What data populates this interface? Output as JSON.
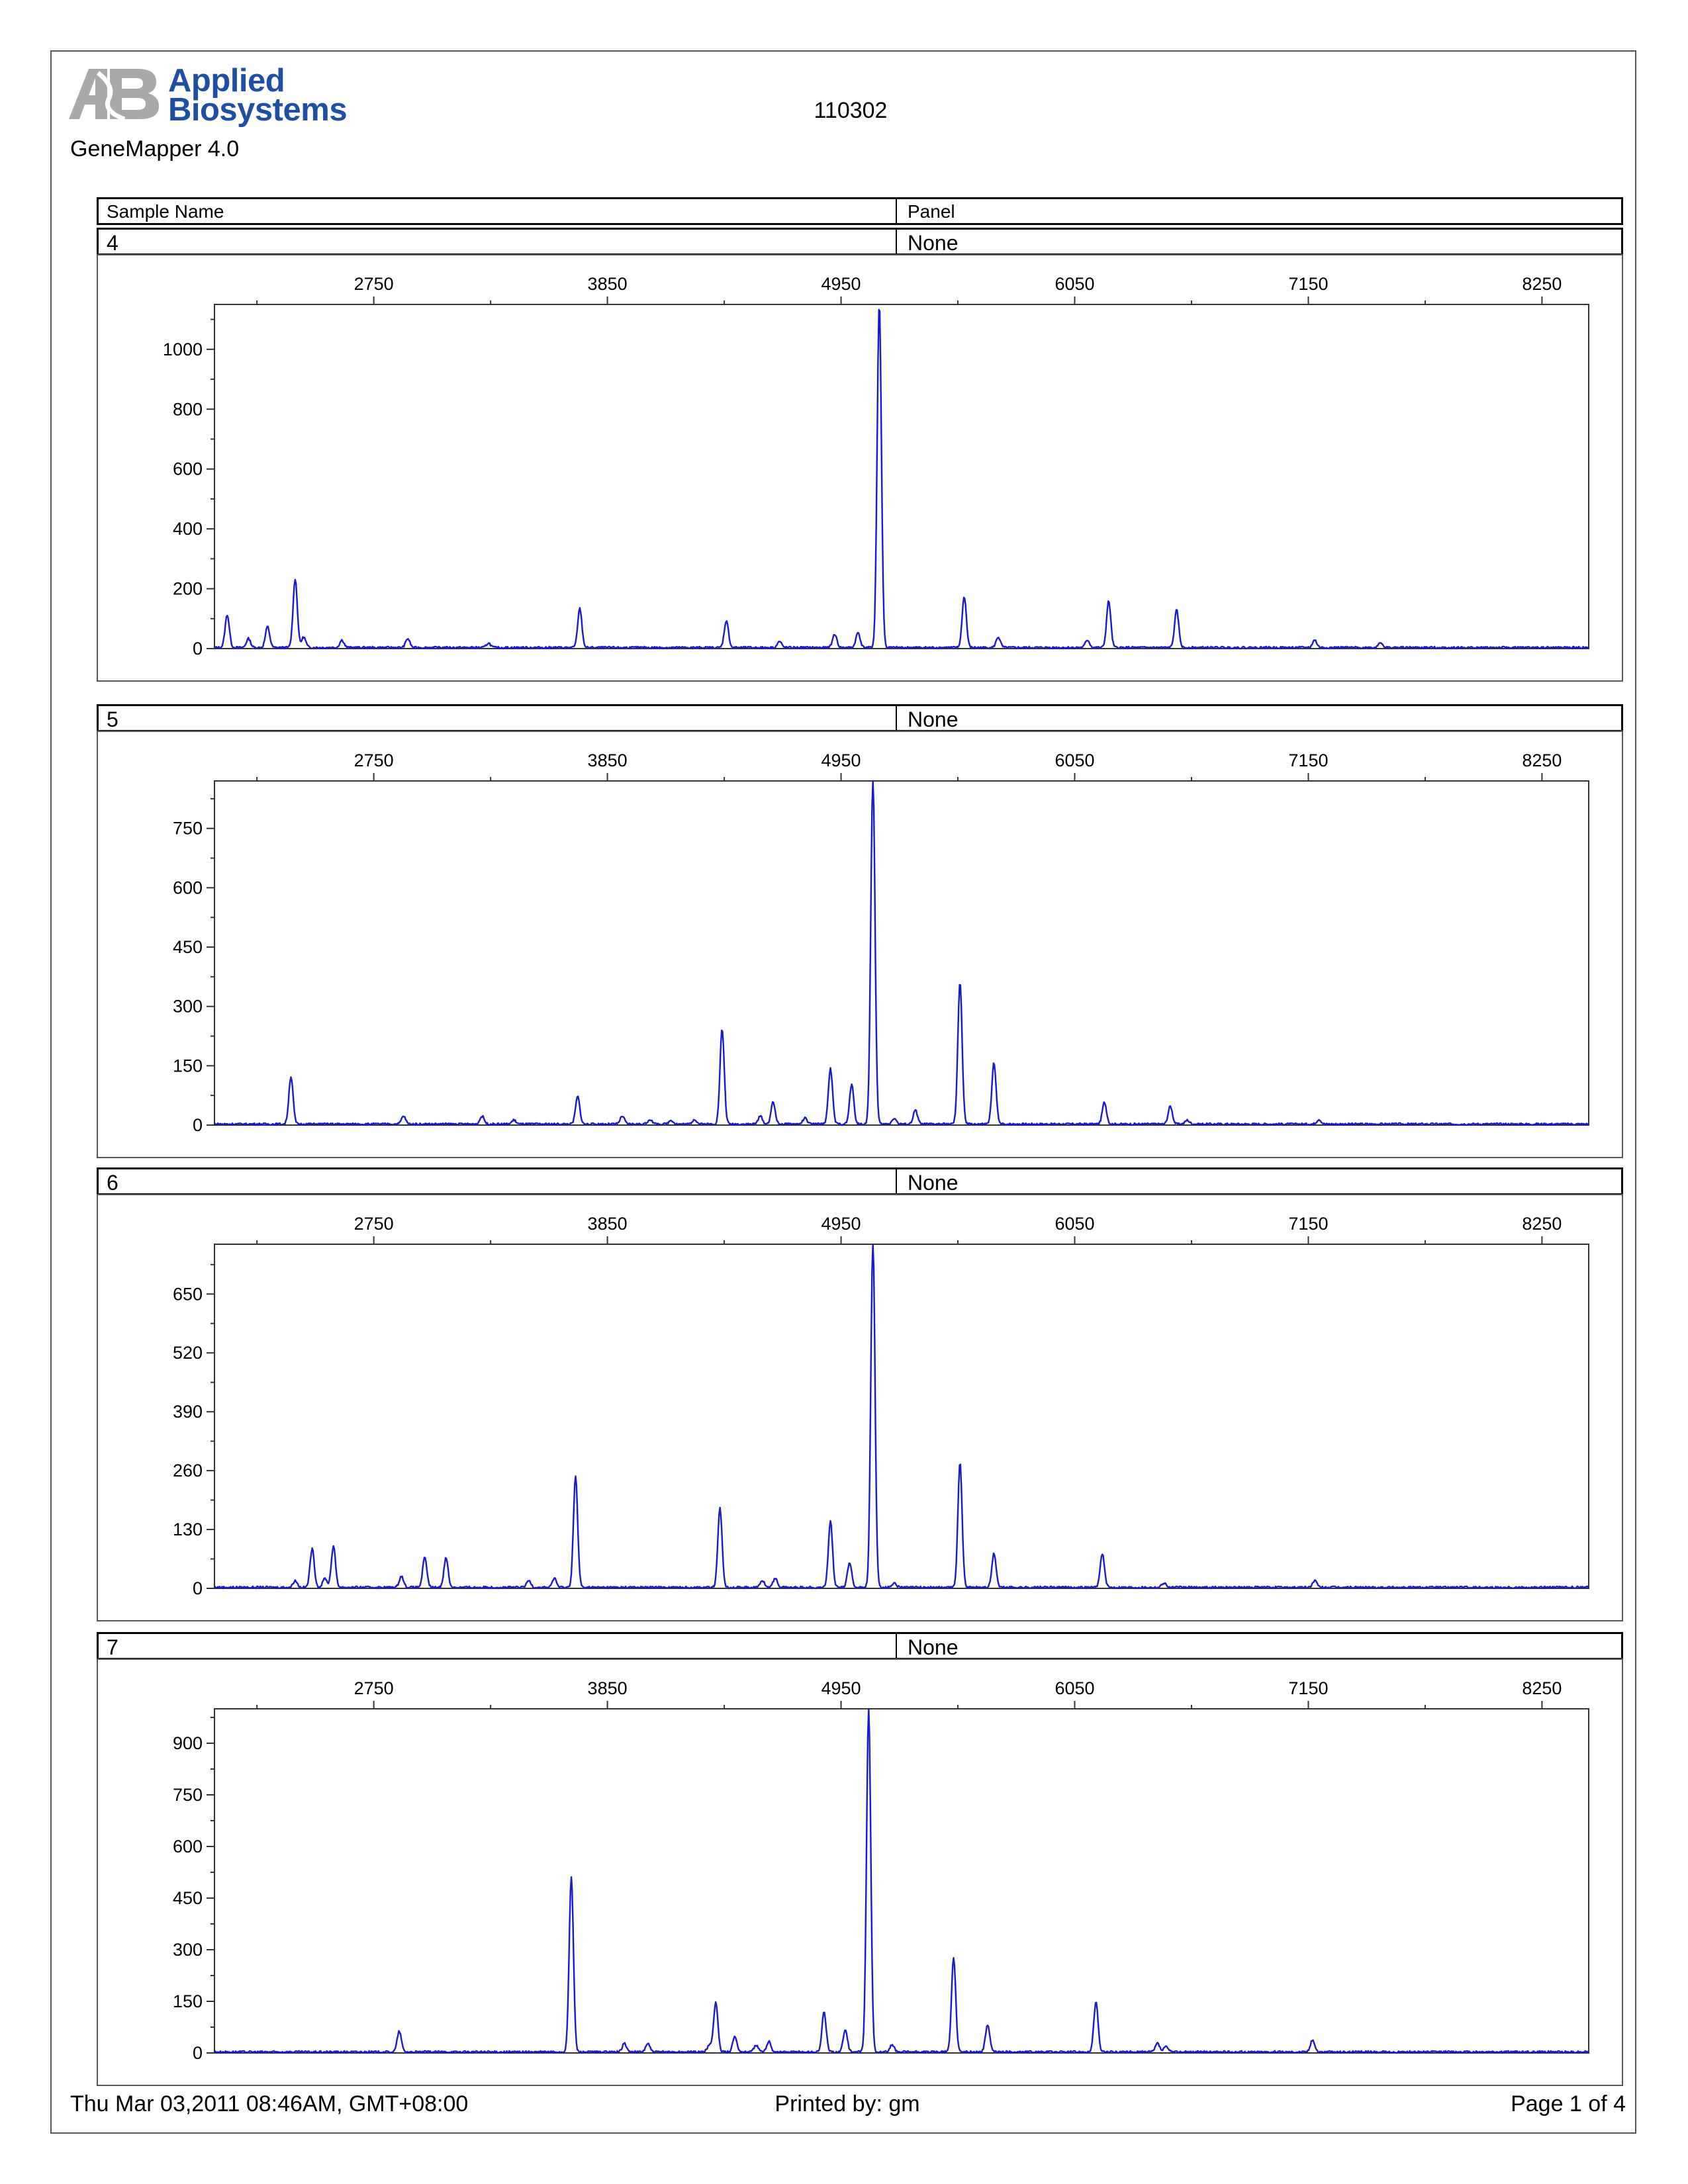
{
  "header": {
    "brand_line1": "Applied",
    "brand_line2": "Biosystems",
    "software": "GeneMapper  4.0",
    "title": "110302"
  },
  "table_header": {
    "sample_name": "Sample Name",
    "panel": "Panel"
  },
  "colors": {
    "trace": "#1a1acc",
    "brand": "#1f4fa3",
    "logo_gray": "#a9a9a9"
  },
  "footer": {
    "date": "Thu Mar 03,2011 08:46AM, GMT+08:00",
    "printed_by": "Printed by: gm",
    "page": "Page 1 of 4"
  },
  "chart_data": [
    {
      "type": "line",
      "sample": "4",
      "panel": "None",
      "xticks": [
        2750,
        3850,
        4950,
        6050,
        7150,
        8250
      ],
      "xticklabels": [
        "2750",
        "3850",
        "4950",
        "6050",
        "7150",
        "8250"
      ],
      "xlim": [
        2000,
        8470
      ],
      "yticks": [
        0,
        200,
        400,
        600,
        800,
        1000
      ],
      "yticklabels": [
        "0",
        "200",
        "400",
        "600",
        "800",
        "1000"
      ],
      "ylim": [
        0,
        1150
      ],
      "peaks": [
        [
          2060,
          110
        ],
        [
          2160,
          30
        ],
        [
          2250,
          70
        ],
        [
          2380,
          230
        ],
        [
          2420,
          35
        ],
        [
          2600,
          25
        ],
        [
          2910,
          30
        ],
        [
          3290,
          15
        ],
        [
          3720,
          130
        ],
        [
          4410,
          90
        ],
        [
          4660,
          20
        ],
        [
          4920,
          45
        ],
        [
          5030,
          50
        ],
        [
          5130,
          1150
        ],
        [
          5530,
          170
        ],
        [
          5690,
          35
        ],
        [
          6110,
          25
        ],
        [
          6210,
          155
        ],
        [
          6530,
          125
        ],
        [
          7180,
          25
        ],
        [
          7490,
          18
        ]
      ]
    },
    {
      "type": "line",
      "sample": "5",
      "panel": "None",
      "xticks": [
        2750,
        3850,
        4950,
        6050,
        7150,
        8250
      ],
      "xticklabels": [
        "2750",
        "3850",
        "4950",
        "6050",
        "7150",
        "8250"
      ],
      "xlim": [
        2000,
        8470
      ],
      "yticks": [
        0,
        150,
        300,
        450,
        600,
        750
      ],
      "yticklabels": [
        "0",
        "150",
        "300",
        "450",
        "600",
        "750"
      ],
      "ylim": [
        0,
        870
      ],
      "peaks": [
        [
          2360,
          120
        ],
        [
          2890,
          20
        ],
        [
          3260,
          20
        ],
        [
          3410,
          10
        ],
        [
          3710,
          70
        ],
        [
          3920,
          20
        ],
        [
          4050,
          12
        ],
        [
          4150,
          10
        ],
        [
          4260,
          12
        ],
        [
          4390,
          240
        ],
        [
          4570,
          20
        ],
        [
          4630,
          55
        ],
        [
          4780,
          15
        ],
        [
          4900,
          140
        ],
        [
          5000,
          100
        ],
        [
          5100,
          870
        ],
        [
          5200,
          15
        ],
        [
          5300,
          35
        ],
        [
          5510,
          360
        ],
        [
          5670,
          155
        ],
        [
          6190,
          55
        ],
        [
          6500,
          45
        ],
        [
          6580,
          10
        ],
        [
          7200,
          12
        ]
      ]
    },
    {
      "type": "line",
      "sample": "6",
      "panel": "None",
      "xticks": [
        2750,
        3850,
        4950,
        6050,
        7150,
        8250
      ],
      "xticklabels": [
        "2750",
        "3850",
        "4950",
        "6050",
        "7150",
        "8250"
      ],
      "xlim": [
        2000,
        8470
      ],
      "yticks": [
        0,
        130,
        260,
        390,
        520,
        650
      ],
      "yticklabels": [
        "0",
        "130",
        "260",
        "390",
        "520",
        "650"
      ],
      "ylim": [
        0,
        760
      ],
      "peaks": [
        [
          2380,
          15
        ],
        [
          2460,
          85
        ],
        [
          2520,
          20
        ],
        [
          2560,
          90
        ],
        [
          2880,
          25
        ],
        [
          2990,
          65
        ],
        [
          3090,
          65
        ],
        [
          3480,
          15
        ],
        [
          3600,
          20
        ],
        [
          3700,
          245
        ],
        [
          4380,
          175
        ],
        [
          4580,
          15
        ],
        [
          4640,
          20
        ],
        [
          4900,
          145
        ],
        [
          4990,
          55
        ],
        [
          5100,
          760
        ],
        [
          5200,
          10
        ],
        [
          5510,
          275
        ],
        [
          5670,
          75
        ],
        [
          6180,
          75
        ],
        [
          6470,
          10
        ],
        [
          7180,
          15
        ]
      ]
    },
    {
      "type": "line",
      "sample": "7",
      "panel": "None",
      "xticks": [
        2750,
        3850,
        4950,
        6050,
        7150,
        8250
      ],
      "xticklabels": [
        "2750",
        "3850",
        "4950",
        "6050",
        "7150",
        "8250"
      ],
      "xlim": [
        2000,
        8470
      ],
      "yticks": [
        0,
        150,
        300,
        450,
        600,
        750,
        900
      ],
      "yticklabels": [
        "0",
        "150",
        "300",
        "450",
        "600",
        "750",
        "900"
      ],
      "ylim": [
        0,
        1000
      ],
      "peaks": [
        [
          2870,
          60
        ],
        [
          3680,
          510
        ],
        [
          3930,
          25
        ],
        [
          4040,
          25
        ],
        [
          4330,
          20
        ],
        [
          4360,
          145
        ],
        [
          4450,
          45
        ],
        [
          4550,
          20
        ],
        [
          4610,
          30
        ],
        [
          4870,
          115
        ],
        [
          4970,
          65
        ],
        [
          5080,
          1000
        ],
        [
          5190,
          20
        ],
        [
          5480,
          275
        ],
        [
          5640,
          80
        ],
        [
          6150,
          145
        ],
        [
          6440,
          25
        ],
        [
          6480,
          15
        ],
        [
          7170,
          35
        ]
      ]
    }
  ]
}
